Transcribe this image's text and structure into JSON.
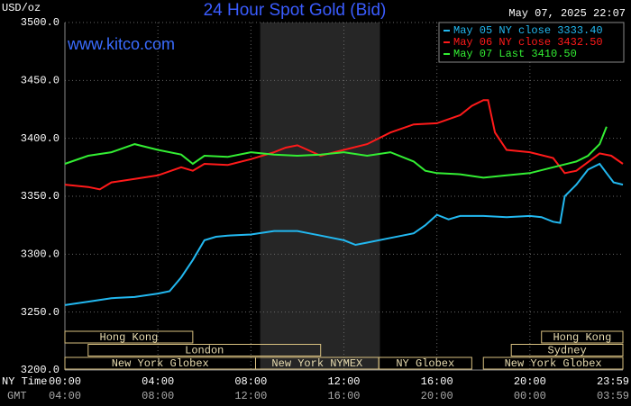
{
  "chart_data": {
    "type": "line",
    "title": "24 Hour Spot Gold (Bid)",
    "y_unit": "USD/oz",
    "timestamp": "May 07, 2025 22:07",
    "site": "www.kitco.com",
    "x_label": "NY Time",
    "x2_label": "GMT",
    "xlim": [
      0,
      24
    ],
    "xticks": [
      {
        "value": 0,
        "label": "00:00"
      },
      {
        "value": 4,
        "label": "04:00"
      },
      {
        "value": 8,
        "label": "08:00"
      },
      {
        "value": 12,
        "label": "12:00"
      },
      {
        "value": 16,
        "label": "16:00"
      },
      {
        "value": 20,
        "label": "20:00"
      },
      {
        "value": 23.98,
        "label": "23:59"
      }
    ],
    "xticks_gmt": [
      "04:00",
      "08:00",
      "12:00",
      "16:00",
      "20:00",
      "00:00",
      "03:59"
    ],
    "ylim": [
      3200,
      3500
    ],
    "yticks": [
      {
        "value": 3200,
        "label": "3200.0"
      },
      {
        "value": 3250,
        "label": "3250.0"
      },
      {
        "value": 3300,
        "label": "3300.0"
      },
      {
        "value": 3350,
        "label": "3350.0"
      },
      {
        "value": 3400,
        "label": "3400.0"
      },
      {
        "value": 3450,
        "label": "3450.0"
      },
      {
        "value": 3500,
        "label": "3500.0"
      }
    ],
    "grid": true,
    "shaded_range": [
      8.4,
      13.55
    ],
    "series": [
      {
        "name": "May 05 NY close 3333.40",
        "color": "#22b8f0",
        "x": [
          0,
          1,
          2,
          3,
          4,
          4.5,
          5,
          5.5,
          6,
          6.5,
          7,
          8,
          9,
          10,
          10.5,
          11,
          12,
          12.5,
          13,
          14,
          15,
          15.5,
          16,
          16.5,
          17,
          18,
          19,
          20,
          20.5,
          21,
          21.3,
          21.5,
          22,
          22.5,
          23,
          23.3,
          23.6,
          24
        ],
        "values": [
          3256,
          3259,
          3262,
          3263,
          3266,
          3268,
          3280,
          3295,
          3312,
          3315,
          3316,
          3317,
          3320,
          3320,
          3318,
          3316,
          3312,
          3308,
          3310,
          3314,
          3318,
          3325,
          3334,
          3330,
          3333,
          3333,
          3332,
          3333,
          3332,
          3328,
          3327,
          3350,
          3360,
          3373,
          3378,
          3370,
          3362,
          3360
        ]
      },
      {
        "name": "May 06 NY close 3432.50",
        "color": "#ff1a1a",
        "x": [
          0,
          1,
          1.5,
          2,
          3,
          4,
          5,
          5.5,
          6,
          7,
          8,
          9,
          9.5,
          10,
          11,
          12,
          13,
          14,
          15,
          16,
          17,
          17.5,
          18,
          18.2,
          18.5,
          19,
          20,
          21,
          21.5,
          22,
          23,
          23.5,
          24
        ],
        "values": [
          3360,
          3358,
          3356,
          3362,
          3365,
          3368,
          3375,
          3372,
          3378,
          3377,
          3382,
          3388,
          3392,
          3394,
          3385,
          3390,
          3395,
          3405,
          3412,
          3413,
          3420,
          3428,
          3433,
          3433,
          3405,
          3390,
          3388,
          3383,
          3370,
          3372,
          3387,
          3385,
          3378
        ]
      },
      {
        "name": "May 07 Last 3410.50",
        "color": "#33ee33",
        "x": [
          0,
          1,
          2,
          3,
          4,
          5,
          5.5,
          6,
          7,
          8,
          9,
          10,
          11,
          12,
          13,
          14,
          15,
          15.5,
          16,
          17,
          18,
          19,
          20,
          21,
          22,
          22.5,
          23,
          23.3
        ],
        "values": [
          3378,
          3385,
          3388,
          3395,
          3390,
          3386,
          3378,
          3385,
          3384,
          3388,
          3386,
          3385,
          3386,
          3388,
          3385,
          3388,
          3380,
          3372,
          3370,
          3369,
          3366,
          3368,
          3370,
          3375,
          3380,
          3385,
          3395,
          3410
        ]
      }
    ],
    "markets": [
      {
        "label": "Hong Kong",
        "start": 0,
        "end": 5.5,
        "row": 0
      },
      {
        "label": "Hong Kong",
        "start": 20.5,
        "end": 24,
        "row": 0
      },
      {
        "label": "London",
        "start": 1,
        "end": 11,
        "row": 1
      },
      {
        "label": "Sydney",
        "start": 19.2,
        "end": 24,
        "row": 1
      },
      {
        "label": "New York Globex",
        "start": 0,
        "end": 8.2,
        "row": 2
      },
      {
        "label": "New York NYMEX",
        "start": 8.2,
        "end": 13.5,
        "row": 2
      },
      {
        "label": "NY Globex",
        "start": 13.5,
        "end": 17.5,
        "row": 2
      },
      {
        "label": "New York Globex",
        "start": 18,
        "end": 24,
        "row": 2
      }
    ]
  }
}
